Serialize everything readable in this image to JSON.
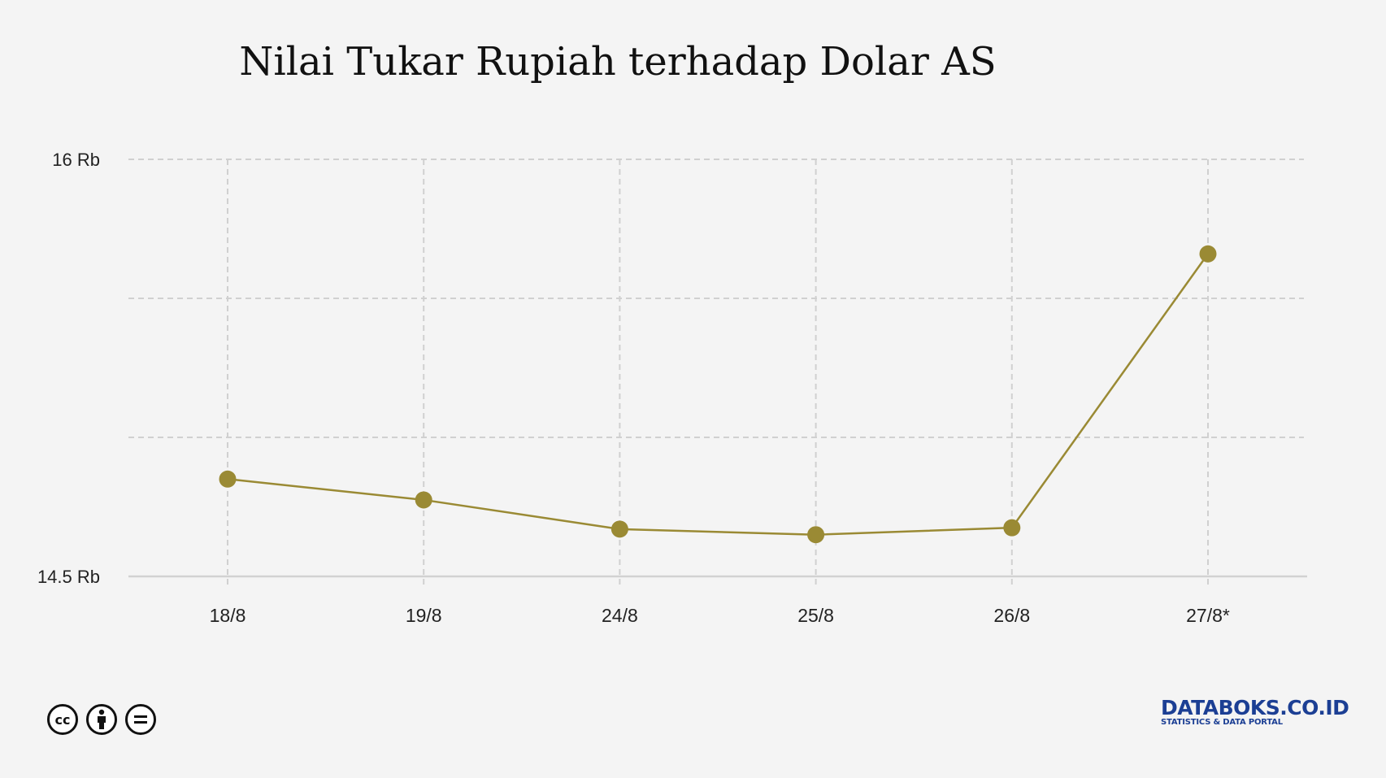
{
  "chart_data": {
    "type": "line",
    "title": "Nilai Tukar Rupiah terhadap Dolar AS",
    "categories": [
      "18/8",
      "19/8",
      "24/8",
      "25/8",
      "26/8",
      "27/8*"
    ],
    "series": [
      {
        "values": [
          14850,
          14775,
          14670,
          14650,
          14675,
          15660
        ]
      }
    ],
    "ylim": [
      14500,
      16000
    ],
    "yticks": [
      {
        "value": 16000,
        "label": "16 Rb"
      },
      {
        "value": 15500,
        "label": ""
      },
      {
        "value": 15000,
        "label": ""
      },
      {
        "value": 14500,
        "label": "14.5 Rb"
      }
    ],
    "grid": true,
    "line_color": "#9a8a34"
  },
  "footer": {
    "license_icons": [
      "cc-icon",
      "by-icon",
      "nd-icon"
    ],
    "brand_main": "DATABOKS.CO.ID",
    "brand_sub": "STATISTICS & DATA PORTAL"
  }
}
